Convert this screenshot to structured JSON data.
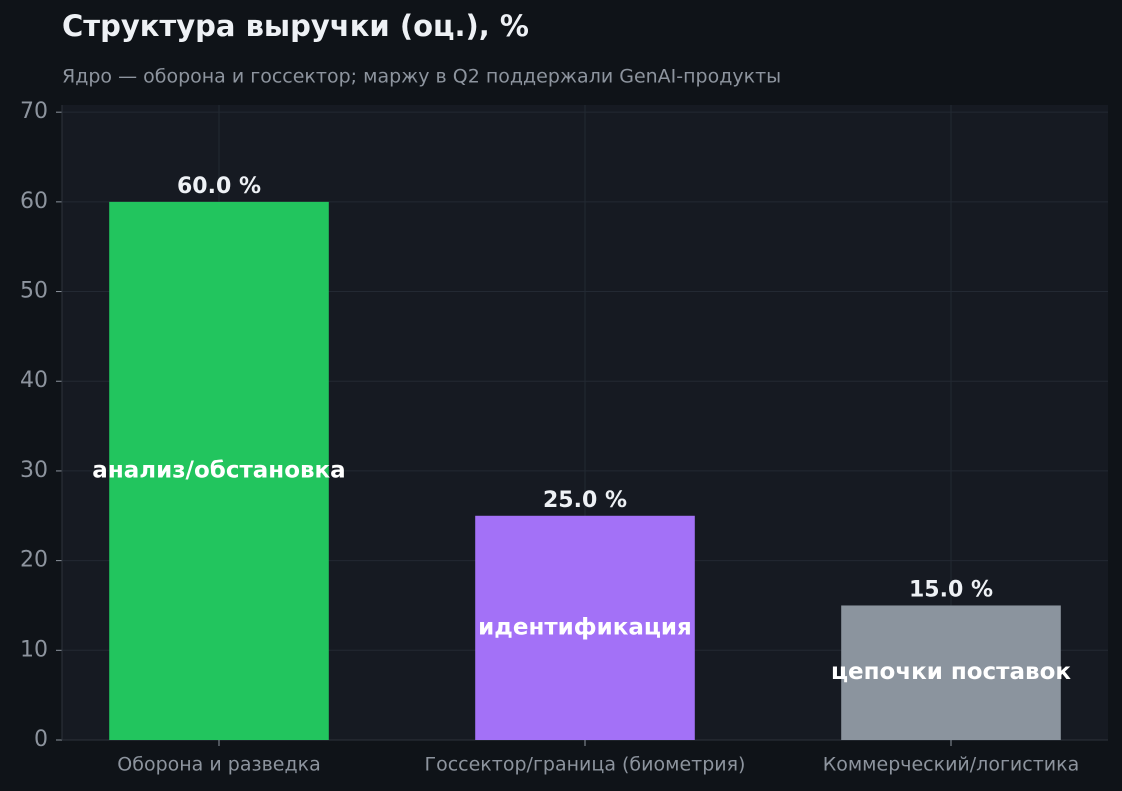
{
  "chart_data": {
    "type": "bar",
    "title": "Структура выручки (оц.), %",
    "subtitle": "Ядро — оборона и госсектор; маржу в Q2 поддержали GenAI-продукты",
    "categories": [
      "Оборона и разведка",
      "Госсектор/граница (биометрия)",
      "Коммерческий/логистика"
    ],
    "values": [
      60,
      25,
      15
    ],
    "value_labels": [
      "60.0 %",
      "25.0 %",
      "15.0 %"
    ],
    "bar_labels": [
      "анализ/обстановка",
      "идентификация",
      "цепочки поставок"
    ],
    "colors": [
      "#22c55e",
      "#a371f7",
      "#8b949e"
    ],
    "ylim": [
      0,
      70.8
    ],
    "yticks": [
      0,
      10,
      20,
      30,
      40,
      50,
      60,
      70
    ],
    "grid": true
  }
}
